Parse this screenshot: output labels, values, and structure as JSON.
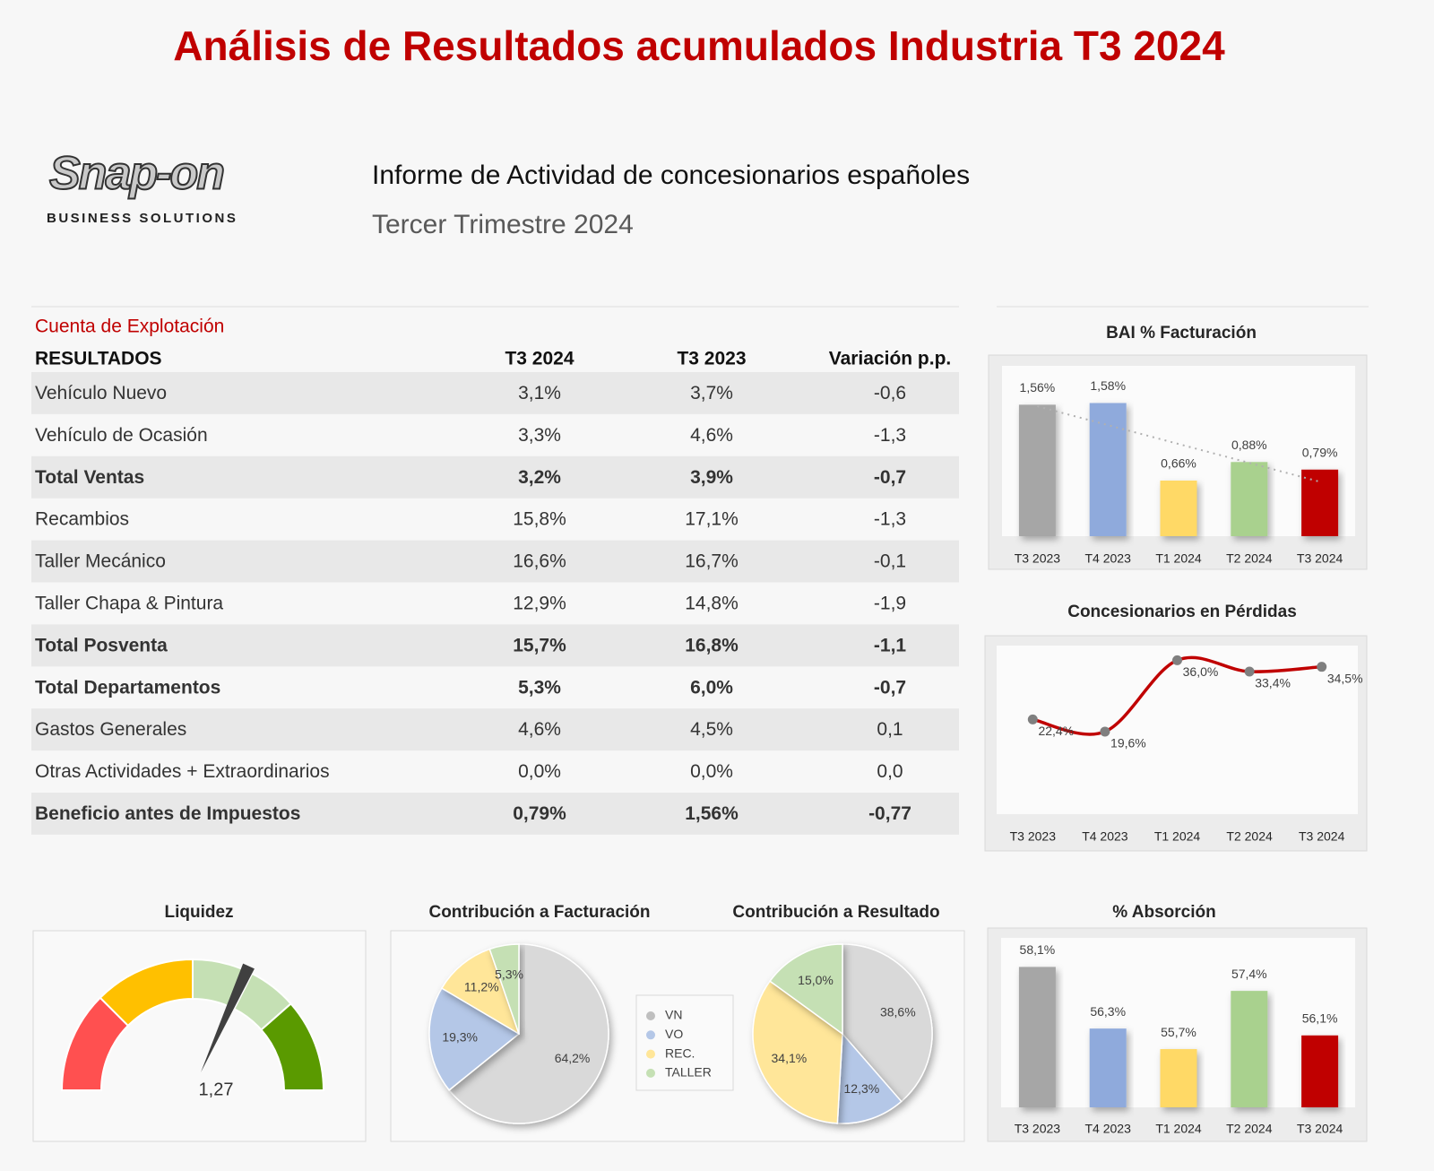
{
  "header": {
    "title": "Análisis de Resultados acumulados Industria T3 2024",
    "logo": "Snap-on",
    "logo_sub": "BUSINESS SOLUTIONS",
    "report_title": "Informe de Actividad de concesionarios españoles",
    "report_subtitle": "Tercer Trimestre 2024"
  },
  "table": {
    "caption": "Cuenta de Explotación",
    "columns": [
      "RESULTADOS",
      "T3 2024",
      "T3 2023",
      "Variación p.p."
    ],
    "rows": [
      [
        "Vehículo Nuevo",
        "3,1%",
        "3,7%",
        "-0,6"
      ],
      [
        "Vehículo de Ocasión",
        "3,3%",
        "4,6%",
        "-1,3"
      ],
      [
        "Total Ventas",
        "3,2%",
        "3,9%",
        "-0,7"
      ],
      [
        "Recambios",
        "15,8%",
        "17,1%",
        "-1,3"
      ],
      [
        "Taller Mecánico",
        "16,6%",
        "16,7%",
        "-0,1"
      ],
      [
        "Taller Chapa & Pintura",
        "12,9%",
        "14,8%",
        "-1,9"
      ],
      [
        "Total Posventa",
        "15,7%",
        "16,8%",
        "-1,1"
      ],
      [
        "Total Departamentos",
        "5,3%",
        "6,0%",
        "-0,7"
      ],
      [
        "Gastos Generales",
        "4,6%",
        "4,5%",
        "0,1"
      ],
      [
        "Otras Actividades + Extraordinarios",
        "0,0%",
        "0,0%",
        "0,0"
      ],
      [
        "Beneficio antes de Impuestos",
        "0,79%",
        "1,56%",
        "-0,77"
      ]
    ],
    "bold_rows": [
      2,
      6,
      7,
      10
    ]
  },
  "chart_data": [
    {
      "type": "bar",
      "title": "BAI % Facturación",
      "categories": [
        "T3 2023",
        "T4 2023",
        "T1 2024",
        "T2 2024",
        "T3 2024"
      ],
      "values": [
        1.56,
        1.58,
        0.66,
        0.88,
        0.79
      ],
      "value_labels": [
        "1,56%",
        "1,58%",
        "0,66%",
        "0,88%",
        "0,79%"
      ],
      "colors": [
        "#a6a6a6",
        "#8faadc",
        "#ffd966",
        "#a9d18e",
        "#c00000"
      ],
      "ylim": [
        0,
        2
      ],
      "trendline": "linear"
    },
    {
      "type": "line",
      "title": "Concesionarios en Pérdidas",
      "categories": [
        "T3 2023",
        "T4 2023",
        "T1 2024",
        "T2 2024",
        "T3 2024"
      ],
      "values": [
        22.4,
        19.6,
        36.0,
        33.4,
        34.5
      ],
      "value_labels": [
        "22,4%",
        "19,6%",
        "36,0%",
        "33,4%",
        "34,5%"
      ],
      "color": "#c00000",
      "ylim": [
        0,
        40
      ]
    },
    {
      "type": "gauge",
      "title": "Liquidez",
      "value": 1.27,
      "value_label": "1,27",
      "range": [
        0,
        2
      ]
    },
    {
      "type": "pie",
      "title": "Contribución a Facturación",
      "categories": [
        "VN",
        "VO",
        "REC.",
        "TALLER"
      ],
      "values": [
        64.2,
        19.3,
        11.2,
        5.3
      ],
      "value_labels": [
        "64,2%",
        "19,3%",
        "11,2%",
        "5,3%"
      ],
      "colors": [
        "#d9d9d9",
        "#b4c7e7",
        "#ffe699",
        "#c5e0b4"
      ]
    },
    {
      "type": "pie",
      "title": "Contribución a Resultado",
      "categories": [
        "VN",
        "VO",
        "REC.",
        "TALLER"
      ],
      "values": [
        38.6,
        12.3,
        34.1,
        15.0
      ],
      "value_labels": [
        "38,6%",
        "12,3%",
        "34,1%",
        "15,0%"
      ],
      "colors": [
        "#d9d9d9",
        "#b4c7e7",
        "#ffe699",
        "#c5e0b4"
      ]
    },
    {
      "type": "bar",
      "title": "% Absorción",
      "categories": [
        "T3 2023",
        "T4 2023",
        "T1 2024",
        "T2 2024",
        "T3 2024"
      ],
      "values": [
        58.1,
        56.3,
        55.7,
        57.4,
        56.1
      ],
      "value_labels": [
        "58,1%",
        "56,3%",
        "55,7%",
        "57,4%",
        "56,1%"
      ],
      "colors": [
        "#a6a6a6",
        "#8faadc",
        "#ffd966",
        "#a9d18e",
        "#c00000"
      ],
      "ylim": [
        54,
        59
      ]
    }
  ]
}
